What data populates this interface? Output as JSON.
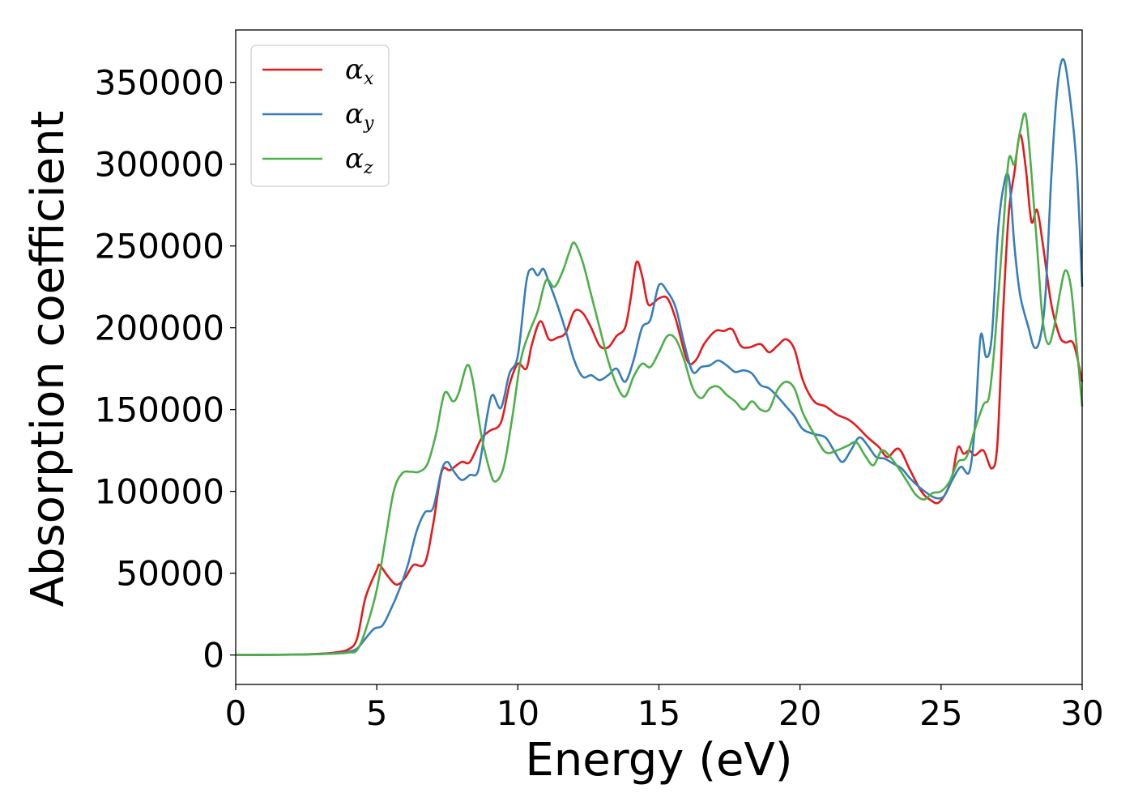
{
  "chart_data": {
    "type": "line",
    "title": "",
    "xlabel": "Energy (eV)",
    "ylabel": "Absorption coefficient",
    "xlim": [
      0,
      30
    ],
    "ylim": [
      -18000,
      382000
    ],
    "xticks": [
      0,
      5,
      10,
      15,
      20,
      25,
      30
    ],
    "yticks": [
      0,
      50000,
      100000,
      150000,
      200000,
      250000,
      300000,
      350000
    ],
    "legend_position": "upper-left",
    "grid": false,
    "series": [
      {
        "name": "α_x",
        "symbol": "α",
        "subscript": "x",
        "color": "#e41a1c",
        "points": [
          [
            0,
            0
          ],
          [
            2,
            200
          ],
          [
            3,
            800
          ],
          [
            3.5,
            1500
          ],
          [
            4,
            3500
          ],
          [
            4.3,
            10000
          ],
          [
            4.6,
            35000
          ],
          [
            5.0,
            52000
          ],
          [
            5.1,
            55000
          ],
          [
            5.4,
            48000
          ],
          [
            5.7,
            43000
          ],
          [
            6.0,
            47000
          ],
          [
            6.3,
            55000
          ],
          [
            6.7,
            56000
          ],
          [
            7.0,
            80000
          ],
          [
            7.3,
            112000
          ],
          [
            7.6,
            113000
          ],
          [
            8.0,
            118000
          ],
          [
            8.3,
            118000
          ],
          [
            8.7,
            132000
          ],
          [
            9.0,
            137000
          ],
          [
            9.4,
            142000
          ],
          [
            9.7,
            165000
          ],
          [
            10.0,
            178000
          ],
          [
            10.3,
            175000
          ],
          [
            10.5,
            190000
          ],
          [
            10.8,
            204000
          ],
          [
            11.1,
            193000
          ],
          [
            11.4,
            194000
          ],
          [
            11.7,
            197000
          ],
          [
            12.0,
            210000
          ],
          [
            12.3,
            209000
          ],
          [
            12.6,
            200000
          ],
          [
            12.9,
            189000
          ],
          [
            13.2,
            188000
          ],
          [
            13.5,
            195000
          ],
          [
            13.8,
            200000
          ],
          [
            14.0,
            218000
          ],
          [
            14.2,
            240000
          ],
          [
            14.4,
            232000
          ],
          [
            14.6,
            215000
          ],
          [
            14.8,
            215000
          ],
          [
            15.0,
            218000
          ],
          [
            15.3,
            218000
          ],
          [
            15.6,
            205000
          ],
          [
            16.0,
            180000
          ],
          [
            16.3,
            180000
          ],
          [
            16.6,
            190000
          ],
          [
            17.0,
            198000
          ],
          [
            17.3,
            198000
          ],
          [
            17.6,
            199000
          ],
          [
            17.9,
            189000
          ],
          [
            18.2,
            188000
          ],
          [
            18.6,
            190000
          ],
          [
            18.9,
            185000
          ],
          [
            19.2,
            189000
          ],
          [
            19.5,
            193000
          ],
          [
            19.8,
            187000
          ],
          [
            20.1,
            168000
          ],
          [
            20.5,
            155000
          ],
          [
            20.9,
            152000
          ],
          [
            21.3,
            147000
          ],
          [
            21.7,
            144000
          ],
          [
            22.0,
            140000
          ],
          [
            22.4,
            133000
          ],
          [
            22.8,
            127000
          ],
          [
            23.1,
            121000
          ],
          [
            23.5,
            126000
          ],
          [
            23.9,
            113000
          ],
          [
            24.3,
            100000
          ],
          [
            24.6,
            95000
          ],
          [
            24.9,
            93000
          ],
          [
            25.2,
            100000
          ],
          [
            25.4,
            110000
          ],
          [
            25.6,
            127000
          ],
          [
            25.8,
            123000
          ],
          [
            26.0,
            125000
          ],
          [
            26.2,
            122000
          ],
          [
            26.5,
            125000
          ],
          [
            26.8,
            114000
          ],
          [
            27.0,
            130000
          ],
          [
            27.2,
            210000
          ],
          [
            27.4,
            270000
          ],
          [
            27.6,
            295000
          ],
          [
            27.8,
            318000
          ],
          [
            28.0,
            298000
          ],
          [
            28.2,
            265000
          ],
          [
            28.4,
            272000
          ],
          [
            28.6,
            252000
          ],
          [
            28.9,
            215000
          ],
          [
            29.2,
            195000
          ],
          [
            29.4,
            191000
          ],
          [
            29.7,
            190000
          ],
          [
            30.0,
            167000
          ]
        ]
      },
      {
        "name": "α_y",
        "symbol": "α",
        "subscript": "y",
        "color": "#377eb8",
        "points": [
          [
            0,
            0
          ],
          [
            2,
            200
          ],
          [
            3,
            600
          ],
          [
            3.5,
            1000
          ],
          [
            4,
            2000
          ],
          [
            4.3,
            4000
          ],
          [
            4.6,
            10000
          ],
          [
            4.9,
            16000
          ],
          [
            5.2,
            18000
          ],
          [
            5.5,
            28000
          ],
          [
            5.8,
            40000
          ],
          [
            6.1,
            55000
          ],
          [
            6.4,
            75000
          ],
          [
            6.7,
            87000
          ],
          [
            7.0,
            90000
          ],
          [
            7.3,
            113000
          ],
          [
            7.5,
            118000
          ],
          [
            7.7,
            113000
          ],
          [
            8.0,
            107000
          ],
          [
            8.3,
            110000
          ],
          [
            8.6,
            113000
          ],
          [
            8.9,
            145000
          ],
          [
            9.1,
            159000
          ],
          [
            9.4,
            151000
          ],
          [
            9.7,
            172000
          ],
          [
            10.0,
            183000
          ],
          [
            10.3,
            228000
          ],
          [
            10.5,
            236000
          ],
          [
            10.7,
            232000
          ],
          [
            10.9,
            236000
          ],
          [
            11.1,
            228000
          ],
          [
            11.4,
            214000
          ],
          [
            11.7,
            198000
          ],
          [
            12.0,
            180000
          ],
          [
            12.3,
            170000
          ],
          [
            12.6,
            171000
          ],
          [
            12.9,
            168000
          ],
          [
            13.2,
            171000
          ],
          [
            13.5,
            175000
          ],
          [
            13.8,
            167000
          ],
          [
            14.1,
            180000
          ],
          [
            14.4,
            200000
          ],
          [
            14.7,
            205000
          ],
          [
            15.0,
            226000
          ],
          [
            15.3,
            222000
          ],
          [
            15.6,
            212000
          ],
          [
            15.9,
            190000
          ],
          [
            16.2,
            173000
          ],
          [
            16.5,
            176000
          ],
          [
            16.8,
            177000
          ],
          [
            17.1,
            180000
          ],
          [
            17.4,
            177000
          ],
          [
            17.7,
            173000
          ],
          [
            18.0,
            174000
          ],
          [
            18.3,
            172000
          ],
          [
            18.6,
            165000
          ],
          [
            18.9,
            163000
          ],
          [
            19.2,
            158000
          ],
          [
            19.5,
            152000
          ],
          [
            19.8,
            146000
          ],
          [
            20.1,
            138000
          ],
          [
            20.5,
            135000
          ],
          [
            20.9,
            133000
          ],
          [
            21.2,
            125000
          ],
          [
            21.5,
            118000
          ],
          [
            21.8,
            125000
          ],
          [
            22.1,
            133000
          ],
          [
            22.4,
            128000
          ],
          [
            22.7,
            121000
          ],
          [
            23.0,
            120000
          ],
          [
            23.3,
            117000
          ],
          [
            23.6,
            114000
          ],
          [
            23.9,
            108000
          ],
          [
            24.2,
            103000
          ],
          [
            24.5,
            99000
          ],
          [
            24.8,
            96000
          ],
          [
            25.1,
            97000
          ],
          [
            25.4,
            107000
          ],
          [
            25.7,
            115000
          ],
          [
            26.0,
            112000
          ],
          [
            26.2,
            140000
          ],
          [
            26.4,
            195000
          ],
          [
            26.6,
            182000
          ],
          [
            26.8,
            195000
          ],
          [
            27.0,
            255000
          ],
          [
            27.2,
            285000
          ],
          [
            27.4,
            292000
          ],
          [
            27.6,
            250000
          ],
          [
            27.8,
            220000
          ],
          [
            28.1,
            200000
          ],
          [
            28.3,
            188000
          ],
          [
            28.5,
            193000
          ],
          [
            28.7,
            220000
          ],
          [
            28.9,
            290000
          ],
          [
            29.1,
            343000
          ],
          [
            29.3,
            364000
          ],
          [
            29.5,
            350000
          ],
          [
            29.8,
            300000
          ],
          [
            30.0,
            225000
          ]
        ]
      },
      {
        "name": "α_z",
        "symbol": "α",
        "subscript": "z",
        "color": "#4daf4a",
        "points": [
          [
            0,
            0
          ],
          [
            2,
            200
          ],
          [
            3,
            500
          ],
          [
            3.5,
            800
          ],
          [
            4,
            1500
          ],
          [
            4.3,
            3000
          ],
          [
            4.6,
            15000
          ],
          [
            5.0,
            40000
          ],
          [
            5.3,
            70000
          ],
          [
            5.6,
            100000
          ],
          [
            5.9,
            111000
          ],
          [
            6.2,
            112000
          ],
          [
            6.5,
            112000
          ],
          [
            6.8,
            117000
          ],
          [
            7.1,
            135000
          ],
          [
            7.4,
            160000
          ],
          [
            7.7,
            155000
          ],
          [
            7.9,
            160000
          ],
          [
            8.2,
            177000
          ],
          [
            8.4,
            168000
          ],
          [
            8.7,
            135000
          ],
          [
            9.0,
            113000
          ],
          [
            9.2,
            106000
          ],
          [
            9.5,
            115000
          ],
          [
            9.8,
            145000
          ],
          [
            10.1,
            180000
          ],
          [
            10.4,
            197000
          ],
          [
            10.7,
            210000
          ],
          [
            11.0,
            229000
          ],
          [
            11.3,
            225000
          ],
          [
            11.6,
            235000
          ],
          [
            11.8,
            245000
          ],
          [
            12.0,
            252000
          ],
          [
            12.3,
            240000
          ],
          [
            12.6,
            220000
          ],
          [
            12.9,
            200000
          ],
          [
            13.2,
            180000
          ],
          [
            13.5,
            165000
          ],
          [
            13.8,
            158000
          ],
          [
            14.1,
            170000
          ],
          [
            14.4,
            178000
          ],
          [
            14.7,
            176000
          ],
          [
            15.0,
            185000
          ],
          [
            15.3,
            195000
          ],
          [
            15.6,
            193000
          ],
          [
            15.9,
            180000
          ],
          [
            16.2,
            163000
          ],
          [
            16.5,
            157000
          ],
          [
            16.8,
            163000
          ],
          [
            17.1,
            164000
          ],
          [
            17.4,
            159000
          ],
          [
            17.7,
            155000
          ],
          [
            18.0,
            150000
          ],
          [
            18.3,
            155000
          ],
          [
            18.6,
            150000
          ],
          [
            18.9,
            150000
          ],
          [
            19.2,
            162000
          ],
          [
            19.5,
            167000
          ],
          [
            19.8,
            163000
          ],
          [
            20.1,
            148000
          ],
          [
            20.5,
            135000
          ],
          [
            20.9,
            124000
          ],
          [
            21.3,
            125000
          ],
          [
            21.7,
            128000
          ],
          [
            22.0,
            130000
          ],
          [
            22.3,
            122000
          ],
          [
            22.6,
            116000
          ],
          [
            22.9,
            125000
          ],
          [
            23.2,
            121000
          ],
          [
            23.5,
            114000
          ],
          [
            23.8,
            106000
          ],
          [
            24.1,
            98000
          ],
          [
            24.4,
            95000
          ],
          [
            24.7,
            99000
          ],
          [
            25.0,
            100000
          ],
          [
            25.3,
            106000
          ],
          [
            25.6,
            118000
          ],
          [
            25.9,
            121000
          ],
          [
            26.2,
            138000
          ],
          [
            26.5,
            153000
          ],
          [
            26.7,
            158000
          ],
          [
            26.9,
            190000
          ],
          [
            27.2,
            260000
          ],
          [
            27.4,
            303000
          ],
          [
            27.6,
            300000
          ],
          [
            27.8,
            320000
          ],
          [
            28.0,
            330000
          ],
          [
            28.2,
            295000
          ],
          [
            28.4,
            250000
          ],
          [
            28.6,
            205000
          ],
          [
            28.8,
            190000
          ],
          [
            29.0,
            200000
          ],
          [
            29.2,
            220000
          ],
          [
            29.4,
            235000
          ],
          [
            29.6,
            225000
          ],
          [
            29.8,
            190000
          ],
          [
            30.0,
            152000
          ]
        ]
      }
    ]
  }
}
